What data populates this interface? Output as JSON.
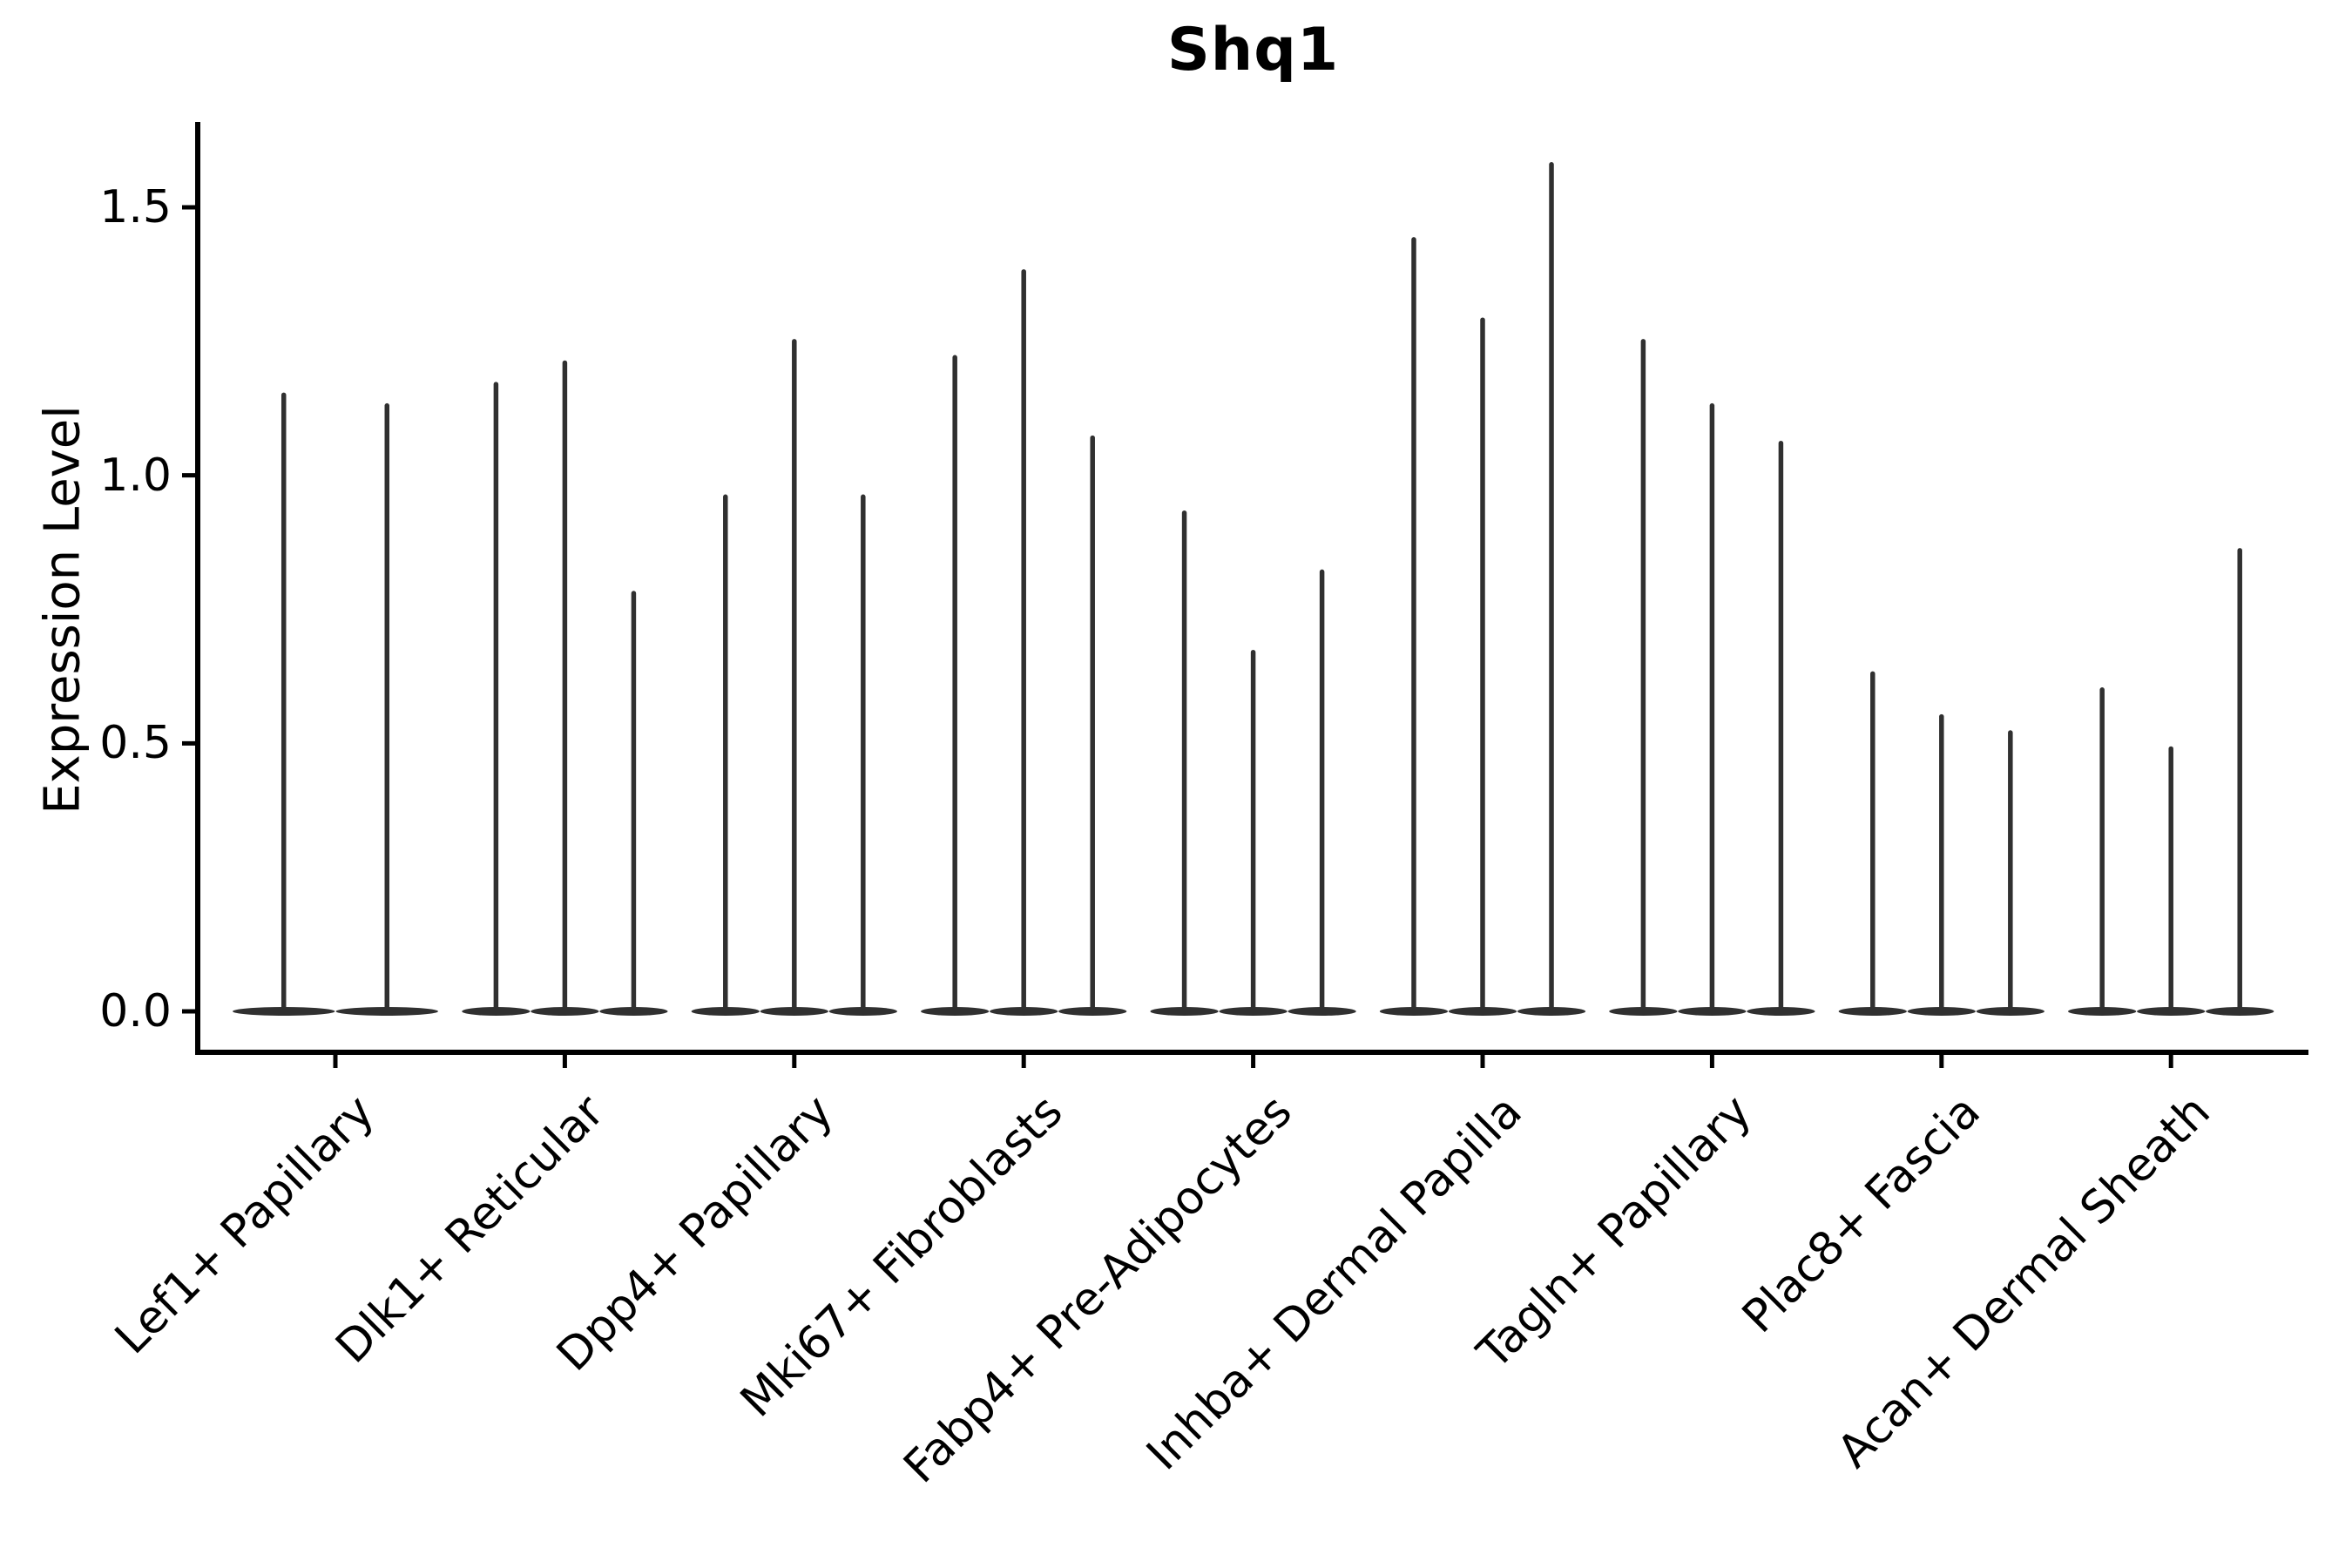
{
  "figure": {
    "title": "Shq1",
    "y_axis_label": "Expression Level"
  },
  "chart_data": {
    "type": "violin",
    "title": "Shq1",
    "xlabel": "",
    "ylabel": "Expression Level",
    "ylim": [
      0,
      1.66
    ],
    "y_ticks": [
      0.0,
      0.5,
      1.0,
      1.5
    ],
    "y_tick_labels": [
      "0.0",
      "0.5",
      "1.0",
      "1.5"
    ],
    "grid": false,
    "legend_position": "none",
    "categories": [
      "Lef1+ Papillary",
      "Dlk1+ Reticular",
      "Dpp4+ Papillary",
      "Mki67+ Fibroblasts",
      "Fabp4+ Pre-Adipocytes",
      "Inhba+ Dermal Papilla",
      "Tagln+ Papillary",
      "Plac8+ Fascia",
      "Acan+ Dermal Sheath"
    ],
    "groups": [
      {
        "category": "Lef1+ Papillary",
        "violin_max_values": [
          1.15,
          1.13
        ]
      },
      {
        "category": "Dlk1+ Reticular",
        "violin_max_values": [
          1.17,
          1.21,
          0.78
        ]
      },
      {
        "category": "Dpp4+ Papillary",
        "violin_max_values": [
          0.96,
          1.25,
          0.96
        ]
      },
      {
        "category": "Mki67+ Fibroblasts",
        "violin_max_values": [
          1.22,
          1.38,
          1.07
        ]
      },
      {
        "category": "Fabp4+ Pre-Adipocytes",
        "violin_max_values": [
          0.93,
          0.67,
          0.82
        ]
      },
      {
        "category": "Inhba+ Dermal Papilla",
        "violin_max_values": [
          1.44,
          1.29,
          1.58
        ]
      },
      {
        "category": "Tagln+ Papillary",
        "violin_max_values": [
          1.25,
          1.13,
          1.06
        ]
      },
      {
        "category": "Plac8+ Fascia",
        "violin_max_values": [
          0.63,
          0.55,
          0.52
        ]
      },
      {
        "category": "Acan+ Dermal Sheath",
        "violin_max_values": [
          0.6,
          0.49,
          0.86
        ]
      }
    ],
    "colors": {
      "violin_stroke": "#303030",
      "axis": "#000000",
      "background": "#ffffff",
      "text": "#000000"
    }
  }
}
